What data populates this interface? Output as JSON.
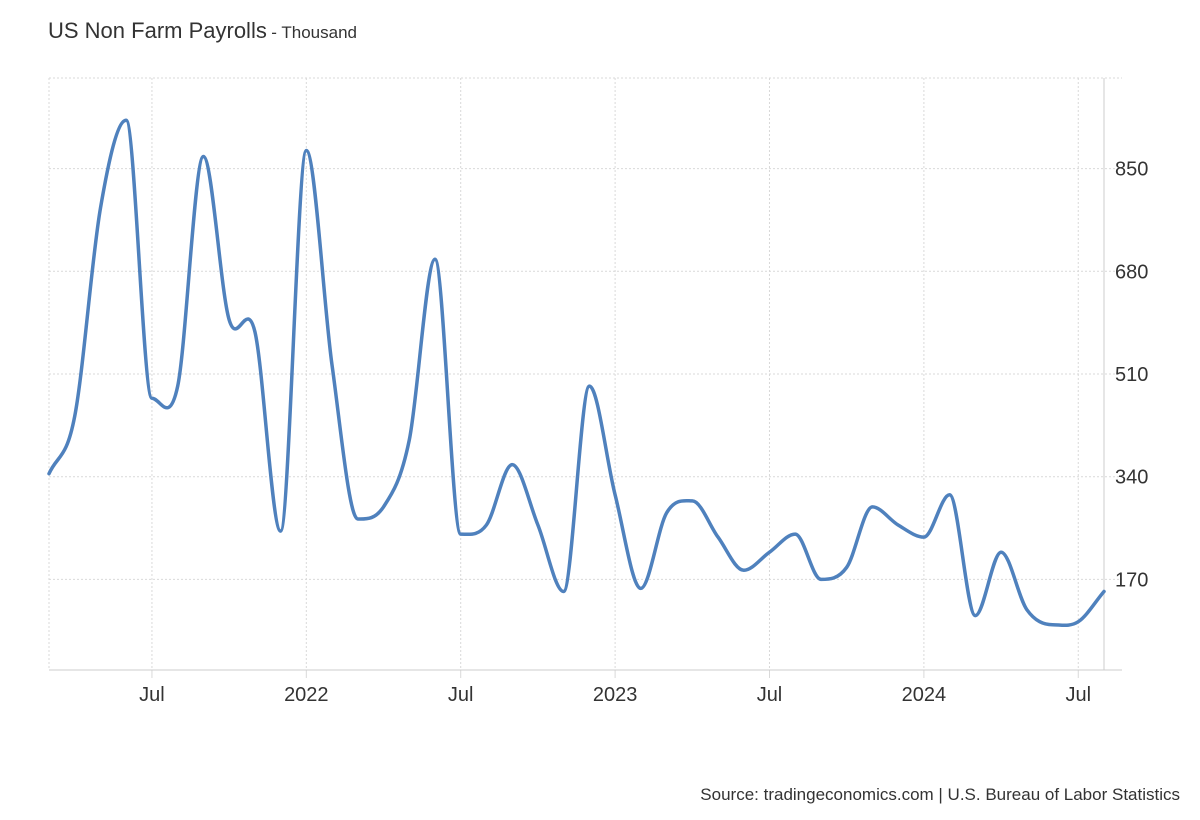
{
  "header": {
    "title": "US Non Farm Payrolls",
    "subtitle": "- Thousand"
  },
  "footer": {
    "source": "Source: tradingeconomics.com | U.S. Bureau of Labor Statistics"
  },
  "colors": {
    "line": "#4f81bd",
    "grid": "#d9d9d9",
    "text": "#333333"
  },
  "chart_data": {
    "type": "line",
    "title": "US Non Farm Payrolls",
    "subtitle": "Thousand",
    "x_start": "2021-03",
    "x_end": "2024-08",
    "x_tick_labels": [
      "Jul",
      "2022",
      "Jul",
      "2023",
      "Jul",
      "2024",
      "Jul"
    ],
    "y_tick_labels": [
      "170",
      "340",
      "510",
      "680",
      "850"
    ],
    "ylim": [
      20,
      1000
    ],
    "grid": true,
    "y_axis_side": "right",
    "series": [
      {
        "x": [
          "2021-03",
          "2021-04",
          "2021-05",
          "2021-06",
          "2021-07",
          "2021-08",
          "2021-09",
          "2021-10",
          "2021-11",
          "2021-12",
          "2022-01",
          "2022-02",
          "2022-03",
          "2022-04",
          "2022-05",
          "2022-06",
          "2022-07",
          "2022-08",
          "2022-09",
          "2022-10",
          "2022-11",
          "2022-12",
          "2023-01",
          "2023-02",
          "2023-03",
          "2023-04",
          "2023-05",
          "2023-06",
          "2023-07",
          "2023-08",
          "2023-09",
          "2023-10",
          "2023-11",
          "2023-12",
          "2024-01",
          "2024-02",
          "2024-03",
          "2024-04",
          "2024-05",
          "2024-06",
          "2024-07",
          "2024-08"
        ],
        "values": [
          345,
          440,
          785,
          930,
          470,
          490,
          870,
          600,
          580,
          250,
          880,
          525,
          270,
          290,
          400,
          700,
          245,
          260,
          360,
          260,
          150,
          490,
          310,
          155,
          280,
          300,
          240,
          185,
          215,
          245,
          170,
          190,
          290,
          260,
          240,
          310,
          110,
          215,
          120,
          95,
          100,
          150
        ]
      }
    ]
  }
}
